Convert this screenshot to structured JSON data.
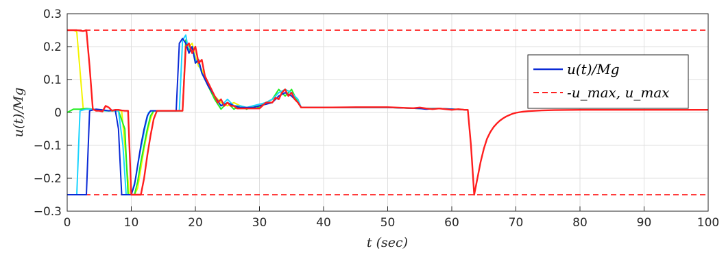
{
  "chart_data": {
    "type": "line",
    "title": "",
    "xlabel": "t (sec)",
    "ylabel": "u(t)/Mg",
    "xlim": [
      0,
      100
    ],
    "ylim": [
      -0.3,
      0.3
    ],
    "xticks": [
      "0",
      "10",
      "20",
      "30",
      "40",
      "50",
      "60",
      "70",
      "80",
      "90",
      "100"
    ],
    "yticks": [
      "0.3",
      "0.2",
      "0.1",
      "0",
      "-0.1",
      "-0.2",
      "-0.3"
    ],
    "grid": true,
    "legend_position": "top-right",
    "legend": [
      "u(t)/Mg",
      "-u_max, u_max"
    ],
    "limits": {
      "u_max": 0.25,
      "color": "#ff2020"
    },
    "series": [
      {
        "color": "#0a2ad6",
        "x": [
          0,
          1.5,
          3.0,
          3.5,
          4.5,
          5.5,
          6.5,
          7.5,
          8.0,
          8.5,
          9.0,
          10.0,
          10.5,
          11.0,
          11.5,
          12.0,
          12.5,
          13.0,
          14.0,
          16.0,
          17.0,
          17.5,
          18.0,
          18.5,
          19.0,
          19.5,
          20.0,
          20.5,
          21.0,
          22.0,
          23.0,
          24.0,
          25.0,
          26.0,
          27.0,
          28.0,
          29.0,
          30.0,
          31.0,
          32.0,
          33.0,
          34.0,
          35.0,
          36.0,
          36.5,
          40,
          50,
          55,
          56,
          58,
          60,
          62.5
        ],
        "y": [
          -0.25,
          -0.25,
          -0.25,
          0.005,
          0.01,
          0.008,
          0.005,
          0.008,
          -0.05,
          -0.25,
          -0.25,
          -0.25,
          -0.22,
          -0.16,
          -0.1,
          -0.05,
          -0.01,
          0.005,
          0.005,
          0.005,
          0.005,
          0.21,
          0.225,
          0.21,
          0.18,
          0.2,
          0.15,
          0.16,
          0.12,
          0.08,
          0.05,
          0.02,
          0.03,
          0.02,
          0.015,
          0.015,
          0.015,
          0.02,
          0.025,
          0.03,
          0.05,
          0.06,
          0.05,
          0.03,
          0.015,
          0.015,
          0.015,
          0.012,
          0.01,
          0.012,
          0.01,
          0.008
        ]
      },
      {
        "color": "#1ad4ff",
        "x": [
          0,
          1.5,
          2.0,
          3.0,
          4.0,
          5.0,
          6.0,
          7.0,
          8.0,
          8.7,
          9.2,
          10.0,
          10.7,
          11.2,
          11.7,
          12.2,
          12.7,
          13.2,
          14.0,
          16.0,
          17.5,
          18.0,
          18.5,
          19.0,
          19.5,
          20.0,
          20.5,
          21.0,
          22.0,
          23.0,
          24.0,
          25.0,
          26.0,
          27.0,
          28.0,
          29.0,
          30.0,
          31.0,
          32.0,
          33.0,
          34.0,
          35.0,
          36.0,
          36.5,
          40,
          50,
          55,
          58,
          62.5
        ],
        "y": [
          -0.25,
          -0.25,
          0.005,
          0.01,
          0.01,
          0.008,
          0.005,
          0.005,
          0.005,
          -0.1,
          -0.25,
          -0.25,
          -0.2,
          -0.14,
          -0.09,
          -0.04,
          0.0,
          0.005,
          0.005,
          0.005,
          0.005,
          0.22,
          0.235,
          0.18,
          0.2,
          0.16,
          0.15,
          0.12,
          0.09,
          0.05,
          0.02,
          0.04,
          0.02,
          0.02,
          0.015,
          0.02,
          0.025,
          0.03,
          0.04,
          0.06,
          0.07,
          0.06,
          0.04,
          0.015,
          0.015,
          0.015,
          0.012,
          0.012,
          0.008
        ]
      },
      {
        "color": "#22ee22",
        "x": [
          0,
          1.0,
          2.0,
          3.0,
          4.0,
          5.0,
          6.0,
          7.0,
          8.0,
          9.0,
          9.5,
          10.5,
          11.0,
          11.5,
          12.0,
          12.5,
          13.0,
          13.5,
          14.5,
          16.0,
          18.0,
          18.5,
          19.0,
          19.5,
          20.0,
          20.5,
          21.0,
          22.0,
          23.0,
          24.0,
          25.0,
          26.0,
          27.0,
          28.0,
          29.0,
          30.0,
          31.0,
          32.0,
          33.0,
          34.0,
          35.0,
          36.0,
          36.5,
          40,
          50,
          55,
          58,
          62.5
        ],
        "y": [
          0.0,
          0.01,
          0.01,
          0.012,
          0.01,
          0.008,
          0.005,
          0.005,
          0.005,
          -0.05,
          -0.25,
          -0.25,
          -0.21,
          -0.15,
          -0.1,
          -0.05,
          -0.01,
          0.005,
          0.005,
          0.005,
          0.005,
          0.22,
          0.19,
          0.2,
          0.15,
          0.16,
          0.12,
          0.08,
          0.04,
          0.01,
          0.03,
          0.01,
          0.02,
          0.01,
          0.02,
          0.015,
          0.03,
          0.04,
          0.07,
          0.05,
          0.07,
          0.03,
          0.015,
          0.015,
          0.015,
          0.012,
          0.012,
          0.008
        ]
      },
      {
        "color": "#f4f400",
        "x": [
          0,
          1.0,
          1.5,
          2.5,
          3.5,
          4.5,
          5.5,
          6.5,
          7.5,
          8.5,
          9.0,
          9.7,
          10.5,
          11.0,
          11.5,
          12.0,
          12.5,
          13.0,
          13.5,
          14.5,
          16.0,
          18.0,
          18.5,
          19.0,
          19.5,
          20.0,
          20.5,
          21.0,
          22.0,
          23.0,
          24.0,
          25.0,
          26.0,
          27.0,
          28.0,
          29.0,
          30.0,
          31.0,
          32.0,
          33.0,
          34.0,
          35.0,
          36.0,
          36.5,
          40,
          50,
          55,
          58,
          62.5
        ],
        "y": [
          0.25,
          0.25,
          0.245,
          0.01,
          0.01,
          0.008,
          0.005,
          0.005,
          0.005,
          0.005,
          -0.1,
          -0.25,
          -0.25,
          -0.23,
          -0.17,
          -0.11,
          -0.06,
          -0.02,
          0.005,
          0.005,
          0.005,
          0.005,
          0.21,
          0.2,
          0.21,
          0.17,
          0.14,
          0.13,
          0.09,
          0.05,
          0.03,
          0.02,
          0.03,
          0.02,
          0.015,
          0.015,
          0.02,
          0.03,
          0.04,
          0.06,
          0.07,
          0.06,
          0.03,
          0.015,
          0.015,
          0.015,
          0.012,
          0.012,
          0.008
        ]
      },
      {
        "color": "#ff1e1e",
        "x": [
          0,
          1.5,
          2.5,
          3.0,
          3.5,
          4.0,
          4.5,
          5.0,
          5.5,
          6.0,
          6.5,
          7.0,
          7.5,
          8.0,
          8.5,
          9.0,
          9.5,
          10.0,
          10.5,
          11.0,
          11.5,
          12.0,
          12.5,
          13.0,
          13.5,
          14.0,
          14.5,
          15.0,
          16.0,
          17.0,
          18.0,
          18.5,
          19.0,
          19.5,
          20.0,
          20.5,
          21.0,
          21.5,
          22.0,
          22.5,
          23.0,
          23.5,
          24.0,
          24.5,
          25.0,
          25.5,
          26.0,
          26.5,
          27.0,
          28.0,
          29.0,
          30.0,
          31.0,
          32.0,
          32.5,
          33.0,
          33.5,
          34.0,
          34.5,
          35.0,
          35.5,
          36.0,
          36.5,
          40,
          45,
          50,
          54,
          55,
          56,
          57,
          58,
          59,
          60,
          61,
          62,
          62.5,
          63.0,
          63.5,
          64.0,
          64.5,
          65.0,
          65.5,
          66.0,
          66.5,
          67.0,
          67.5,
          68.0,
          68.5,
          69.0,
          69.5,
          70.0,
          71.0,
          72.0,
          74.0,
          76.0,
          80.0,
          85.0,
          90.0,
          95.0,
          100.0
        ],
        "y": [
          0.25,
          0.25,
          0.247,
          0.25,
          0.14,
          0.01,
          0.005,
          0.005,
          0.003,
          0.02,
          0.015,
          0.005,
          0.008,
          0.008,
          0.006,
          0.005,
          0.005,
          -0.25,
          -0.25,
          -0.25,
          -0.25,
          -0.2,
          -0.13,
          -0.07,
          -0.02,
          0.005,
          0.005,
          0.005,
          0.005,
          0.005,
          0.005,
          0.2,
          0.21,
          0.18,
          0.2,
          0.15,
          0.16,
          0.11,
          0.09,
          0.07,
          0.05,
          0.03,
          0.04,
          0.02,
          0.03,
          0.02,
          0.02,
          0.012,
          0.012,
          0.012,
          0.012,
          0.012,
          0.03,
          0.03,
          0.045,
          0.04,
          0.06,
          0.07,
          0.05,
          0.06,
          0.04,
          0.03,
          0.015,
          0.015,
          0.016,
          0.016,
          0.013,
          0.015,
          0.012,
          0.01,
          0.012,
          0.01,
          0.008,
          0.01,
          0.008,
          0.008,
          -0.1,
          -0.25,
          -0.2,
          -0.15,
          -0.11,
          -0.08,
          -0.06,
          -0.045,
          -0.034,
          -0.025,
          -0.018,
          -0.012,
          -0.008,
          -0.004,
          -0.001,
          0.002,
          0.004,
          0.006,
          0.007,
          0.008,
          0.008,
          0.008,
          0.008,
          0.008
        ]
      }
    ]
  }
}
